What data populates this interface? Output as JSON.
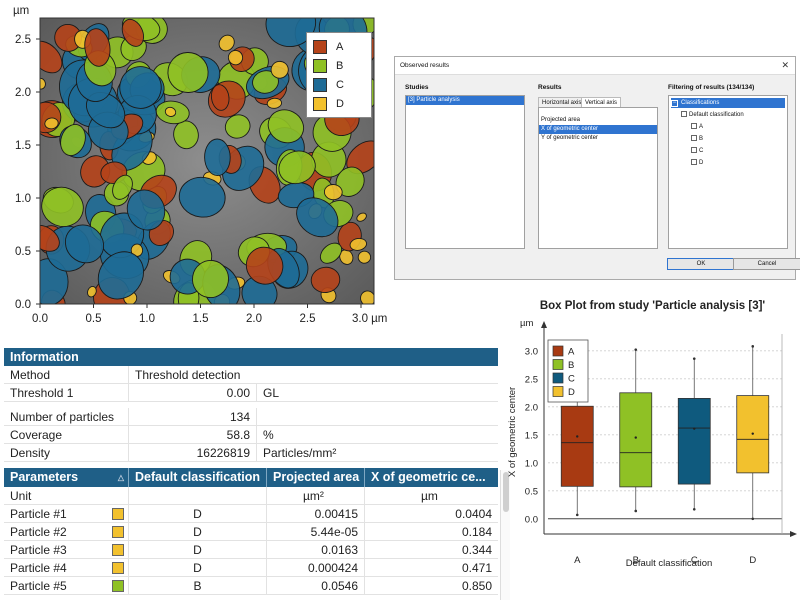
{
  "map": {
    "unit_label": "µm",
    "x_unit_label": "3.0 µm",
    "y_ticks": [
      "0.0",
      "0.5",
      "1.0",
      "1.5",
      "2.0",
      "2.5"
    ],
    "x_ticks": [
      "0.0",
      "0.5",
      "1.0",
      "1.5",
      "2.0",
      "2.5"
    ],
    "legend": [
      {
        "label": "A",
        "color": "#b5431a"
      },
      {
        "label": "B",
        "color": "#8fc125"
      },
      {
        "label": "C",
        "color": "#1e6b96"
      },
      {
        "label": "D",
        "color": "#f2c12e"
      }
    ]
  },
  "dialog": {
    "title": "Observed results",
    "studies_header": "Studies",
    "studies": [
      "[3] Particle analysis"
    ],
    "results_header": "Results",
    "tabs": [
      "Horizontal axis",
      "Vertical axis"
    ],
    "results": [
      "Projected area",
      "X of geometric center",
      "Y of geometric center"
    ],
    "filter_header": "Filtering of results (134/134)",
    "tree": {
      "root": "Classifications",
      "child": "Default classification",
      "leaves": [
        "A",
        "B",
        "C",
        "D"
      ]
    },
    "ok_label": "OK",
    "cancel_label": "Cancel"
  },
  "info": {
    "header": "Information",
    "rows": [
      {
        "label": "Method",
        "value": "Threshold detection",
        "unit": ""
      },
      {
        "label": "Threshold 1",
        "value": "0.00",
        "unit": "GL"
      }
    ],
    "stats": [
      {
        "label": "Number of particles",
        "value": "134",
        "unit": ""
      },
      {
        "label": "Coverage",
        "value": "58.8",
        "unit": "%"
      },
      {
        "label": "Density",
        "value": "16226819",
        "unit": "Particles/mm²"
      }
    ]
  },
  "params": {
    "headers": [
      "Parameters",
      "Default classification",
      "Projected area",
      "X of geometric ce..."
    ],
    "unit_row": {
      "label": "Unit",
      "cls": "",
      "area": "µm²",
      "x": "µm"
    },
    "rows": [
      {
        "name": "Particle #1",
        "cls": "D",
        "area": "0.00415",
        "x": "0.0404"
      },
      {
        "name": "Particle #2",
        "cls": "D",
        "area": "5.44e-05",
        "x": "0.184"
      },
      {
        "name": "Particle #3",
        "cls": "D",
        "area": "0.0163",
        "x": "0.344"
      },
      {
        "name": "Particle #4",
        "cls": "D",
        "area": "0.000424",
        "x": "0.471"
      },
      {
        "name": "Particle #5",
        "cls": "B",
        "area": "0.0546",
        "x": "0.850"
      }
    ],
    "class_colors": {
      "A": "#b5431a",
      "B": "#8fc125",
      "C": "#1e6b96",
      "D": "#f2c12e"
    }
  },
  "chart_data": {
    "type": "box",
    "title": "Box Plot from study 'Particle analysis [3]'",
    "xlabel": "Default classification",
    "ylabel": "X of geometric center",
    "yunit": "µm",
    "ylim": [
      -0.2,
      3.3
    ],
    "y_ticks": [
      0.0,
      0.5,
      1.0,
      1.5,
      2.0,
      2.5,
      3.0
    ],
    "grid": true,
    "legend_position": "top-left",
    "categories": [
      "A",
      "B",
      "C",
      "D"
    ],
    "colors": [
      "#a83a12",
      "#8fc125",
      "#0f5a7e",
      "#f2c12e"
    ],
    "boxes": [
      {
        "name": "A",
        "min": 0.07,
        "q1": 0.58,
        "median": 1.36,
        "q3": 2.01,
        "max": 2.76,
        "mean": 1.47
      },
      {
        "name": "B",
        "min": 0.14,
        "q1": 0.57,
        "median": 1.18,
        "q3": 2.25,
        "max": 3.02,
        "mean": 1.45
      },
      {
        "name": "C",
        "min": 0.17,
        "q1": 0.62,
        "median": 1.62,
        "q3": 2.15,
        "max": 2.86,
        "mean": 1.61
      },
      {
        "name": "D",
        "min": 0.0,
        "q1": 0.82,
        "median": 1.42,
        "q3": 2.2,
        "max": 3.08,
        "mean": 1.52
      }
    ]
  }
}
